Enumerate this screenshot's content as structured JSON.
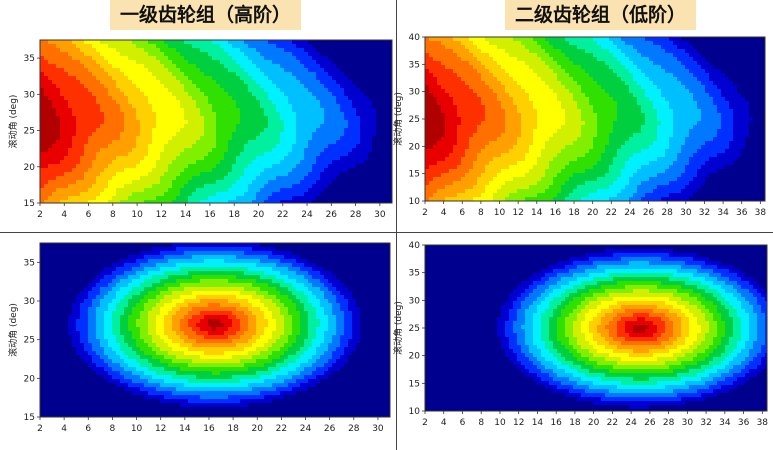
{
  "titles": {
    "left": "一级齿轮组（高阶）",
    "right": "二级齿轮组（低阶）"
  },
  "ylabel": "滚动角 (deg)",
  "colormap": [
    "#00008f",
    "#0000d0",
    "#0030ff",
    "#0078ff",
    "#00bfff",
    "#00f0ff",
    "#00f0a0",
    "#00d040",
    "#30e000",
    "#80f000",
    "#d0f000",
    "#ffff00",
    "#ffd000",
    "#ffa000",
    "#ff7000",
    "#ff3000",
    "#e80000",
    "#b00000",
    "#8a0000"
  ],
  "chart_data": [
    {
      "type": "heatmap",
      "id": "p1",
      "pattern": "gradient",
      "x_ticks": [
        "2",
        "4",
        "6",
        "8",
        "10",
        "12",
        "14",
        "16",
        "18",
        "20",
        "22",
        "24",
        "26",
        "28",
        "30"
      ],
      "y_ticks": [
        "15",
        "20",
        "25",
        "30",
        "35"
      ],
      "xlim": [
        2,
        31
      ],
      "ylim": [
        15,
        37.5
      ],
      "ylabel": "滚动角 (deg)",
      "levels": 18
    },
    {
      "type": "heatmap",
      "id": "p2",
      "pattern": "gradient",
      "x_ticks": [
        "2",
        "4",
        "6",
        "8",
        "10",
        "12",
        "14",
        "16",
        "18",
        "20",
        "22",
        "24",
        "26",
        "28",
        "30",
        "32",
        "34",
        "36",
        "38"
      ],
      "y_ticks": [
        "10",
        "15",
        "20",
        "25",
        "30",
        "35",
        "40"
      ],
      "xlim": [
        2,
        38.5
      ],
      "ylim": [
        10,
        40
      ],
      "ylabel": "滚动角 (deg)",
      "levels": 18
    },
    {
      "type": "heatmap",
      "id": "p3",
      "pattern": "peak",
      "x_ticks": [
        "2",
        "4",
        "6",
        "8",
        "10",
        "12",
        "14",
        "16",
        "18",
        "20",
        "22",
        "24",
        "26",
        "28",
        "30"
      ],
      "y_ticks": [
        "15",
        "20",
        "25",
        "30",
        "35"
      ],
      "xlim": [
        2,
        31
      ],
      "ylim": [
        15,
        37.5
      ],
      "peak": [
        16.5,
        27
      ],
      "ylabel": "滚动角 (deg)",
      "levels": 18
    },
    {
      "type": "heatmap",
      "id": "p4",
      "pattern": "peak",
      "x_ticks": [
        "2",
        "4",
        "6",
        "8",
        "10",
        "12",
        "14",
        "16",
        "18",
        "20",
        "22",
        "24",
        "26",
        "28",
        "30",
        "32",
        "34",
        "36",
        "38"
      ],
      "y_ticks": [
        "10",
        "15",
        "20",
        "25",
        "30",
        "35",
        "40"
      ],
      "xlim": [
        2,
        38.5
      ],
      "ylim": [
        10,
        40
      ],
      "peak": [
        25,
        25
      ],
      "ylabel": "滚动角 (deg)",
      "levels": 18
    }
  ]
}
